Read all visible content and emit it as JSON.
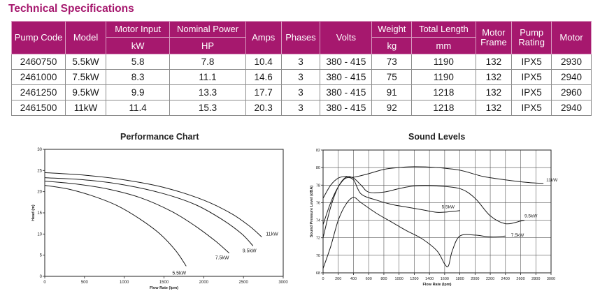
{
  "page_title": "Technical Specifications",
  "table": {
    "headers": {
      "pump_code": "Pump Code",
      "model": "Model",
      "motor_input": "Motor Input",
      "motor_input_unit": "kW",
      "nominal_power": "Nominal Power",
      "nominal_power_unit": "HP",
      "amps": "Amps",
      "phases": "Phases",
      "volts": "Volts",
      "weight": "Weight",
      "weight_unit": "kg",
      "total_length": "Total Length",
      "total_length_unit": "mm",
      "motor_frame": "Motor Frame",
      "pump_rating": "Pump Rating",
      "motor": "Motor"
    },
    "rows": [
      [
        "2460750",
        "5.5kW",
        "5.8",
        "7.8",
        "10.4",
        "3",
        "380 - 415",
        "73",
        "1190",
        "132",
        "IPX5",
        "2930"
      ],
      [
        "2461000",
        "7.5kW",
        "8.3",
        "11.1",
        "14.6",
        "3",
        "380 - 415",
        "75",
        "1190",
        "132",
        "IPX5",
        "2940"
      ],
      [
        "2461250",
        "9.5kW",
        "9.9",
        "13.3",
        "17.7",
        "3",
        "380 - 415",
        "91",
        "1218",
        "132",
        "IPX5",
        "2960"
      ],
      [
        "2461500",
        "11kW",
        "11.4",
        "15.3",
        "20.3",
        "3",
        "380 - 415",
        "92",
        "1218",
        "132",
        "IPX5",
        "2940"
      ]
    ]
  },
  "chart_data": [
    {
      "type": "line",
      "title": "Performance Chart",
      "xlabel": "Flow Rate (lpm)",
      "ylabel": "Head (m)",
      "xlim": [
        0,
        3000
      ],
      "ylim": [
        0,
        30
      ],
      "x_ticks": [
        0,
        500,
        1000,
        1500,
        2000,
        2500,
        3000
      ],
      "y_ticks": [
        0,
        5,
        10,
        15,
        20,
        25,
        30
      ],
      "grid": false,
      "series": [
        {
          "name": "5.5kW",
          "x": [
            0,
            300,
            600,
            900,
            1200,
            1450,
            1650,
            1780
          ],
          "y": [
            21.5,
            20.6,
            19.0,
            16.8,
            13.5,
            10.0,
            6.0,
            2.4
          ]
        },
        {
          "name": "7.5kW",
          "x": [
            0,
            400,
            800,
            1200,
            1600,
            1900,
            2150,
            2320
          ],
          "y": [
            22.5,
            21.8,
            20.6,
            18.6,
            15.3,
            11.8,
            8.3,
            5.5
          ]
        },
        {
          "name": "9.5kW",
          "x": [
            0,
            500,
            1000,
            1500,
            1900,
            2250,
            2480,
            2620
          ],
          "y": [
            23.3,
            22.8,
            21.6,
            19.5,
            16.9,
            13.2,
            10.0,
            7.2
          ]
        },
        {
          "name": "11kW",
          "x": [
            0,
            500,
            1000,
            1500,
            2000,
            2350,
            2580,
            2730
          ],
          "y": [
            24.5,
            23.9,
            22.8,
            21.0,
            18.0,
            14.8,
            11.8,
            9.3
          ]
        }
      ],
      "annotations": [
        "5.5kW",
        "7.5kW",
        "9.5kW",
        "11kW"
      ]
    },
    {
      "type": "line",
      "title": "Sound Levels",
      "xlabel": "Flow Rate (lpm)",
      "ylabel": "Sound Pressure Level (dBA)",
      "xlim": [
        0,
        3000
      ],
      "ylim": [
        68,
        82
      ],
      "x_ticks": [
        0,
        200,
        400,
        600,
        800,
        1000,
        1200,
        1400,
        1600,
        1800,
        2000,
        2200,
        2400,
        2600,
        2800,
        3000
      ],
      "y_ticks": [
        68,
        70,
        72,
        74,
        76,
        78,
        80,
        82
      ],
      "grid": true,
      "series": [
        {
          "name": "11kW",
          "x": [
            0,
            100,
            200,
            300,
            400,
            600,
            800,
            1000,
            1200,
            1500,
            1800,
            2100,
            2400,
            2700,
            2900
          ],
          "y": [
            76.5,
            78.0,
            78.8,
            79.0,
            78.9,
            79.3,
            79.8,
            80.0,
            80.1,
            80.0,
            79.7,
            79.0,
            78.6,
            78.3,
            78.2
          ]
        },
        {
          "name": "9.5kW",
          "x": [
            0,
            100,
            200,
            300,
            400,
            500,
            600,
            800,
            1000,
            1200,
            1500,
            1800,
            2000,
            2200,
            2400,
            2600,
            2650
          ],
          "y": [
            72.0,
            75.5,
            77.8,
            78.9,
            78.8,
            78.0,
            77.2,
            77.2,
            77.6,
            77.9,
            77.9,
            77.6,
            76.5,
            74.5,
            73.6,
            73.9,
            74.0
          ]
        },
        {
          "name": "5.5kW",
          "x": [
            0,
            100,
            200,
            300,
            400,
            500,
            700,
            900,
            1100,
            1300,
            1500,
            1700,
            1800
          ],
          "y": [
            73.5,
            76.0,
            77.8,
            78.8,
            78.6,
            77.0,
            76.3,
            75.8,
            75.5,
            75.2,
            74.9,
            75.0,
            75.1
          ]
        },
        {
          "name": "7.5kW",
          "x": [
            0,
            100,
            200,
            300,
            400,
            500,
            700,
            900,
            1100,
            1300,
            1500,
            1600,
            1650,
            1700,
            1800,
            2000,
            2200,
            2400
          ],
          "y": [
            68.5,
            71.0,
            74.0,
            75.8,
            76.6,
            76.0,
            74.8,
            73.8,
            72.8,
            71.9,
            70.5,
            69.0,
            68.8,
            70.5,
            72.2,
            72.3,
            72.1,
            72.2
          ]
        }
      ],
      "annotations": [
        "11kW",
        "9.5kW",
        "5.5kW",
        "7.5kW"
      ]
    }
  ]
}
